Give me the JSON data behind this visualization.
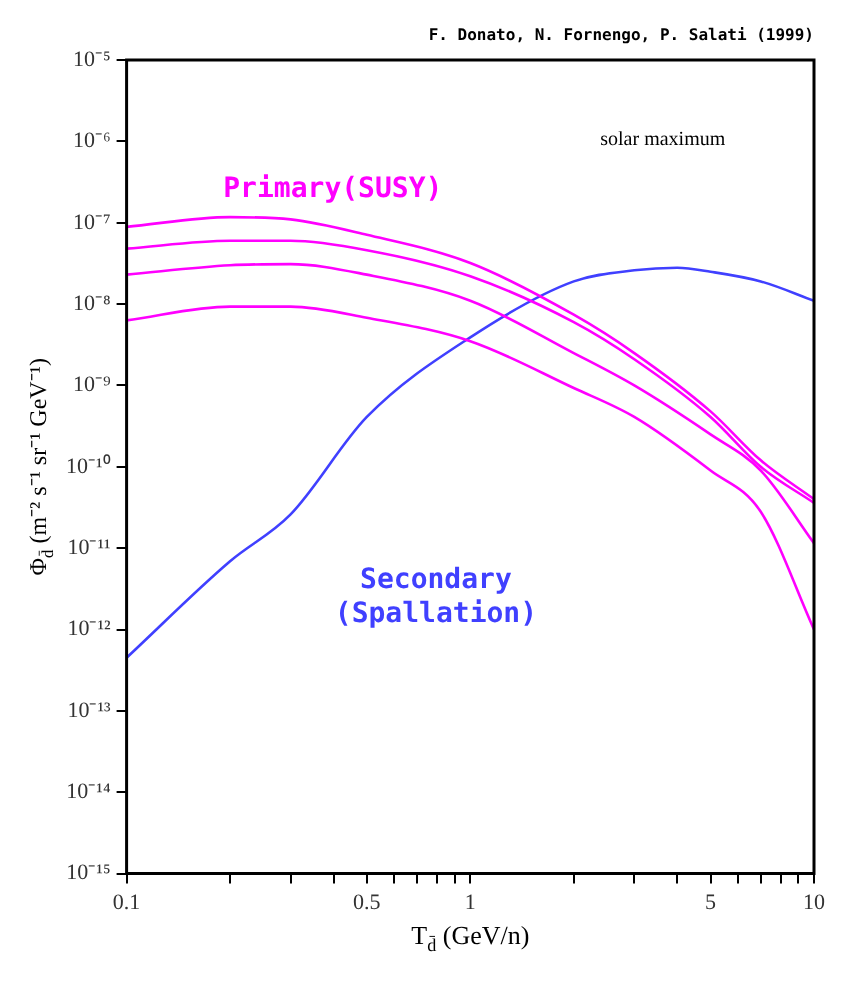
{
  "chart_data": {
    "type": "line",
    "xlabel": "T$_{d̄}$ (GeV/n)",
    "ylabel": "Φ$_{d̄}$ (m⁻² s⁻¹ sr⁻¹ GeV⁻¹)",
    "annotations": [
      "F. Donato, N. Fornengo, P. Salati (1999)",
      "solar maximum"
    ],
    "log": "xy",
    "grid": false,
    "legend": false,
    "marker": "none",
    "line_style": "solid",
    "xlim": [
      0.1,
      10
    ],
    "ylim": [
      1e-15,
      1e-05
    ],
    "xticks": [
      0.1,
      {
        "value": 0.2,
        "label": null
      },
      {
        "value": 0.3,
        "label": null
      },
      {
        "value": 0.4,
        "label": null
      },
      0.5,
      {
        "value": 0.6,
        "label": null
      },
      {
        "value": 0.7,
        "label": null
      },
      {
        "value": 0.8,
        "label": null
      },
      {
        "value": 0.9,
        "label": null
      },
      1,
      {
        "value": 2,
        "label": null
      },
      {
        "value": 3,
        "label": null
      },
      {
        "value": 4,
        "label": null
      },
      5,
      {
        "value": 6,
        "label": null
      },
      {
        "value": 7,
        "label": null
      },
      {
        "value": 8,
        "label": null
      },
      {
        "value": 9,
        "label": null
      },
      10
    ],
    "yticks": [
      {
        "value": 1e-15,
        "label": "10⁻¹⁵"
      },
      {
        "value": 1e-14,
        "label": "10⁻¹⁴"
      },
      {
        "value": 1e-13,
        "label": "10⁻¹³"
      },
      {
        "value": 1e-12,
        "label": "10⁻¹²"
      },
      {
        "value": 1e-11,
        "label": "10⁻¹¹"
      },
      {
        "value": 1e-10,
        "label": "10⁻¹⁰"
      },
      {
        "value": 1e-09,
        "label": "10⁻⁹"
      },
      {
        "value": 1e-08,
        "label": "10⁻⁸"
      },
      {
        "value": 1e-07,
        "label": "10⁻⁷"
      },
      {
        "value": 1e-06,
        "label": "10⁻⁶"
      },
      {
        "value": 1e-05,
        "label": "10⁻⁵"
      }
    ],
    "x": [
      0.1,
      0.2,
      0.3,
      0.5,
      1,
      2,
      3,
      5,
      7,
      10
    ],
    "series": [
      {
        "name": "Primary(SUSY)",
        "color": "#ff00ff",
        "values": [
          8.9e-08,
          1.17e-07,
          1.1e-07,
          7.1e-08,
          3.2e-08,
          7.4e-09,
          2.5e-09,
          4.8e-10,
          1.2e-10,
          4e-11
        ]
      },
      {
        "color": "#ff00ff",
        "values": [
          4.8e-08,
          6e-08,
          6e-08,
          4.6e-08,
          2.2e-08,
          6e-09,
          2.1e-09,
          4.1e-10,
          1e-10,
          3.6e-11
        ]
      },
      {
        "color": "#ff00ff",
        "values": [
          2.3e-08,
          3e-08,
          3.1e-08,
          2.3e-08,
          1.1e-08,
          2.5e-09,
          1e-09,
          2.5e-10,
          9e-11,
          1.15e-11
        ]
      },
      {
        "color": "#ff00ff",
        "values": [
          6.3e-09,
          9.3e-09,
          9.3e-09,
          6.8e-09,
          3.5e-09,
          9.3e-10,
          4.1e-10,
          9e-11,
          2.8e-11,
          1e-12
        ]
      },
      {
        "name": "Secondary (Spallation)",
        "color": "#4040ff",
        "x": [
          0.1,
          0.2,
          0.3,
          0.5,
          1,
          2,
          3,
          4,
          5,
          7,
          10
        ],
        "values": [
          4.5e-13,
          6.9e-12,
          2.6e-11,
          4.1e-10,
          3.9e-09,
          1.9e-08,
          2.6e-08,
          2.8e-08,
          2.5e-08,
          1.9e-08,
          1.1e-08
        ]
      }
    ]
  }
}
